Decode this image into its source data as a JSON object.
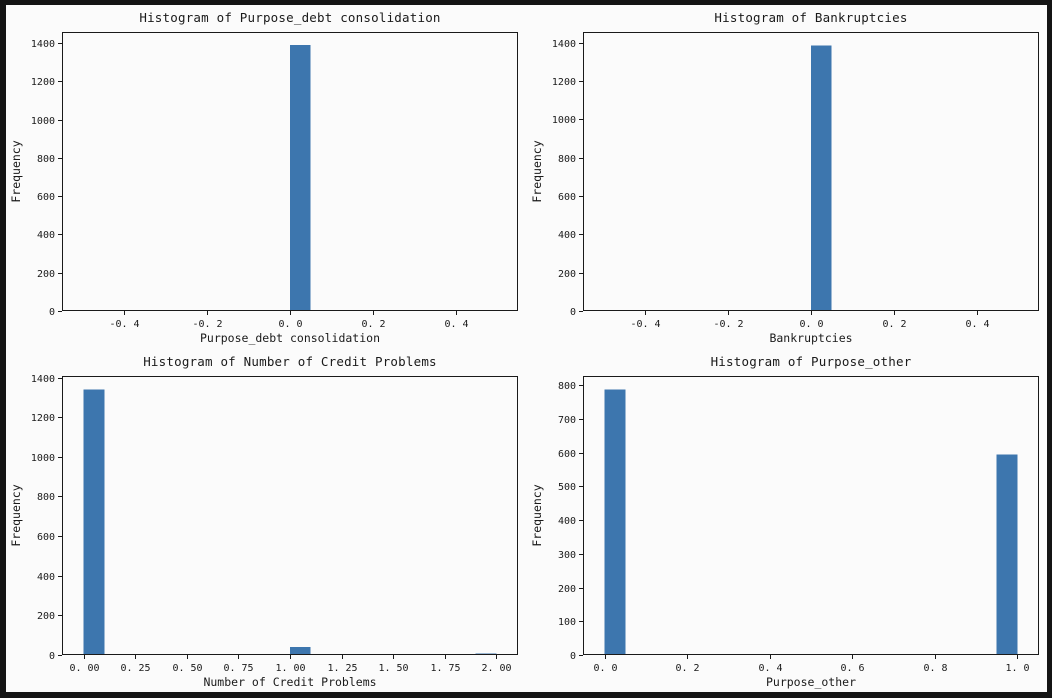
{
  "window": {
    "background_color": "#141414",
    "canvas_color": "#fbfbfb"
  },
  "style": {
    "bar_color": "#3d76ae",
    "axis_color": "#1a1a1a",
    "text_color": "#1a1a1a",
    "grid": false,
    "legend": "none"
  },
  "chart_data": [
    {
      "type": "bar",
      "subtype": "histogram",
      "title": "Histogram of Purpose_debt consolidation",
      "xlabel": "Purpose_debt consolidation",
      "ylabel": "Frequency",
      "xlim": [
        -0.55,
        0.55
      ],
      "ylim": [
        0,
        1457
      ],
      "xticks": {
        "values": [
          -0.4,
          -0.2,
          0.0,
          0.2,
          0.4
        ],
        "labels": [
          "-0. 4",
          "-0. 2",
          "0. 0",
          "0. 2",
          "0. 4"
        ]
      },
      "yticks": {
        "values": [
          0,
          200,
          400,
          600,
          800,
          1000,
          1200,
          1400
        ],
        "labels": [
          "0",
          "200",
          "400",
          "600",
          "800",
          "1000",
          "1200",
          "1400"
        ]
      },
      "bars": [
        {
          "x0": 0.0,
          "x1": 0.05,
          "value": 1388
        }
      ]
    },
    {
      "type": "bar",
      "subtype": "histogram",
      "title": "Histogram of Bankruptcies",
      "xlabel": "Bankruptcies",
      "ylabel": "Frequency",
      "xlim": [
        -0.55,
        0.55
      ],
      "ylim": [
        0,
        1456
      ],
      "xticks": {
        "values": [
          -0.4,
          -0.2,
          0.0,
          0.2,
          0.4
        ],
        "labels": [
          "-0. 4",
          "-0. 2",
          "0. 0",
          "0. 2",
          "0. 4"
        ]
      },
      "yticks": {
        "values": [
          0,
          200,
          400,
          600,
          800,
          1000,
          1200,
          1400
        ],
        "labels": [
          "0",
          "200",
          "400",
          "600",
          "800",
          "1000",
          "1200",
          "1400"
        ]
      },
      "bars": [
        {
          "x0": 0.0,
          "x1": 0.05,
          "value": 1386
        }
      ]
    },
    {
      "type": "bar",
      "subtype": "histogram",
      "title": "Histogram of Number of Credit Problems",
      "xlabel": "Number of Credit Problems",
      "ylabel": "Frequency",
      "xlim": [
        -0.105,
        2.105
      ],
      "ylim": [
        0,
        1408
      ],
      "xticks": {
        "values": [
          0.0,
          0.25,
          0.5,
          0.75,
          1.0,
          1.25,
          1.5,
          1.75,
          2.0
        ],
        "labels": [
          "0. 00",
          "0. 25",
          "0. 50",
          "0. 75",
          "1. 00",
          "1. 25",
          "1. 50",
          "1. 75",
          "2. 00"
        ]
      },
      "yticks": {
        "values": [
          0,
          200,
          400,
          600,
          800,
          1000,
          1200,
          1400
        ],
        "labels": [
          "0",
          "200",
          "400",
          "600",
          "800",
          "1000",
          "1200",
          "1400"
        ]
      },
      "bars": [
        {
          "x0": 0.0,
          "x1": 0.1,
          "value": 1340
        },
        {
          "x0": 1.0,
          "x1": 1.1,
          "value": 40
        },
        {
          "x0": 1.9,
          "x1": 2.0,
          "value": 8
        }
      ]
    },
    {
      "type": "bar",
      "subtype": "histogram",
      "title": "Histogram of Purpose_other",
      "xlabel": "Purpose_other",
      "ylabel": "Frequency",
      "xlim": [
        -0.0525,
        1.0525
      ],
      "ylim": [
        0,
        827
      ],
      "xticks": {
        "values": [
          0.0,
          0.2,
          0.4,
          0.6,
          0.8,
          1.0
        ],
        "labels": [
          "0. 0",
          "0. 2",
          "0. 4",
          "0. 6",
          "0. 8",
          "1. 0"
        ]
      },
      "yticks": {
        "values": [
          0,
          100,
          200,
          300,
          400,
          500,
          600,
          700,
          800
        ],
        "labels": [
          "0",
          "100",
          "200",
          "300",
          "400",
          "500",
          "600",
          "700",
          "800"
        ]
      },
      "bars": [
        {
          "x0": 0.0,
          "x1": 0.05,
          "value": 787
        },
        {
          "x0": 0.95,
          "x1": 1.0,
          "value": 594
        }
      ]
    }
  ]
}
